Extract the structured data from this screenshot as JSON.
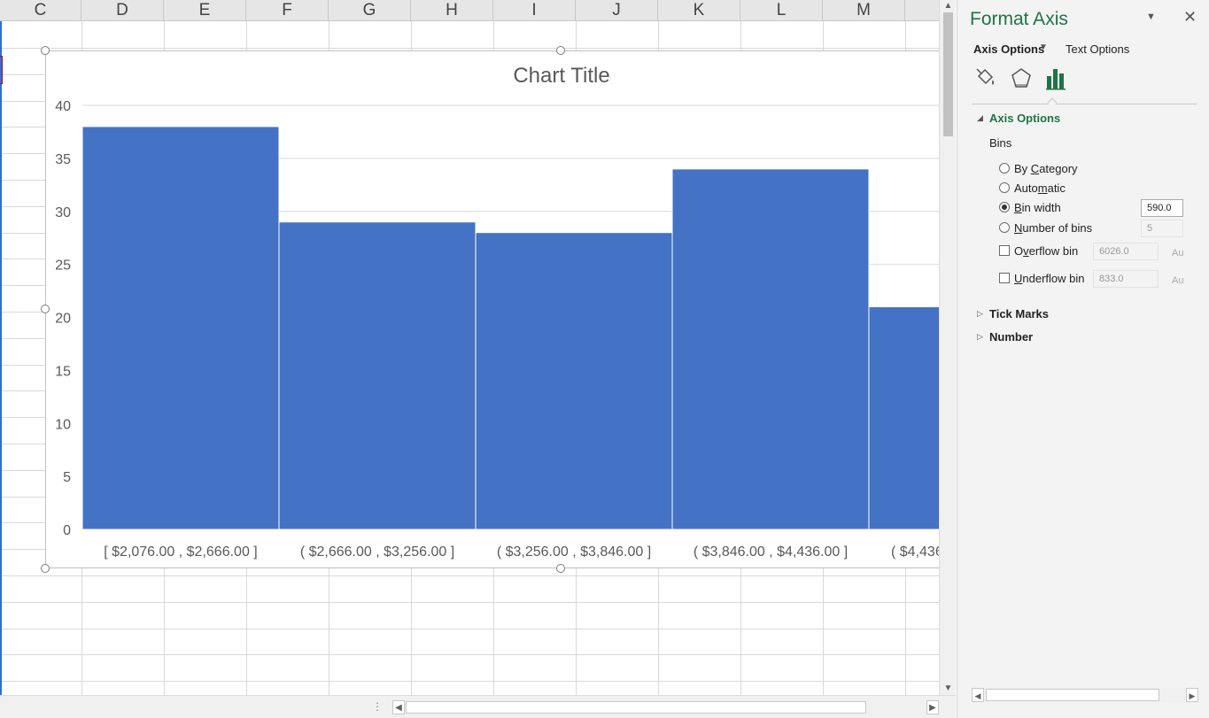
{
  "sheet": {
    "columns": [
      "C",
      "D",
      "E",
      "F",
      "G",
      "H",
      "I",
      "J",
      "K",
      "L",
      "M"
    ]
  },
  "chart_data": {
    "type": "bar",
    "title": "Chart Title",
    "categories": [
      "[ $2,076.00 ,  $2,666.00 ]",
      "( $2,666.00 ,  $3,256.00 ]",
      "( $3,256.00 ,  $3,846.00 ]",
      "( $3,846.00 ,  $4,436.00 ]",
      "( $4,436"
    ],
    "values": [
      38,
      29,
      28,
      34,
      21
    ],
    "ylim": [
      0,
      40
    ],
    "yticks": [
      "0",
      "5",
      "10",
      "15",
      "20",
      "25",
      "30",
      "35",
      "40"
    ],
    "xlabel": "",
    "ylabel": "",
    "grid": true,
    "bar_color": "#4472c4",
    "gap": "none (histogram)"
  },
  "pane": {
    "title": "Format Axis",
    "tab_axis_options": "Axis Options",
    "tab_text_options": "Text Options",
    "icons": [
      "fill-line-icon",
      "effects-icon",
      "axis-options-icon"
    ],
    "section_axis_options": "Axis Options",
    "bins_label": "Bins",
    "by_category_label": "By Category",
    "automatic_label": "Automatic",
    "bin_width_label": "Bin width",
    "bin_width_value": "590.0",
    "number_of_bins_label": "Number of bins",
    "number_of_bins_value": "5",
    "overflow_bin_label": "Overflow bin",
    "overflow_bin_value": "6026.0",
    "underflow_bin_label": "Underflow bin",
    "underflow_bin_value": "833.0",
    "auto_label": "Au",
    "section_tick_marks": "Tick Marks",
    "section_number": "Number",
    "accent_color": "#217346"
  }
}
